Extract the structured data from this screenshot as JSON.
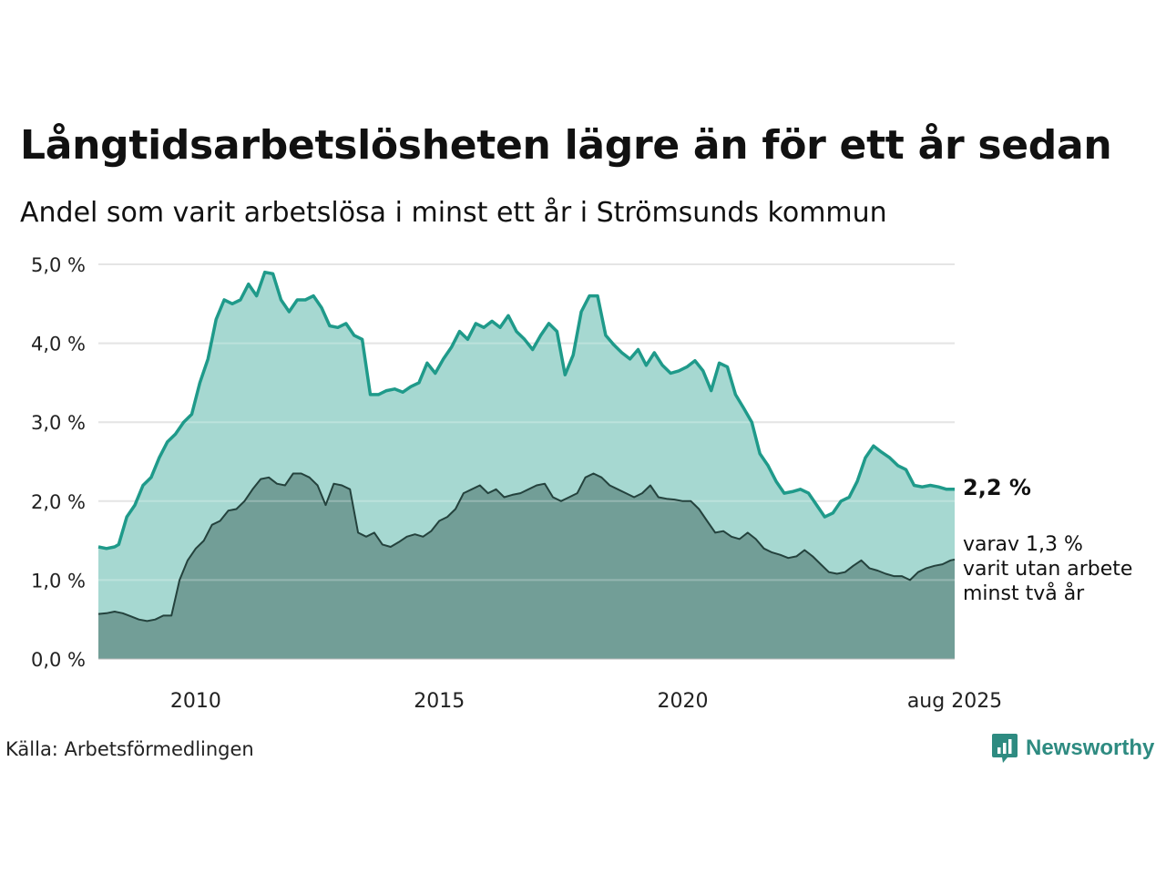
{
  "title": "Långtidsarbetslösheten lägre än för ett år sedan",
  "subtitle": "Andel som varit arbetslösa i minst ett år i Strömsunds kommun",
  "source": "Källa: Arbetsförmedlingen",
  "brand": "Newsworthy",
  "colors": {
    "series1_line": "#1f9a8a",
    "series1_fill": "#a6d8d1",
    "series2_line": "#24423d",
    "series2_fill": "#729e97",
    "grid": "#dddddd",
    "brand": "#2e8b81"
  },
  "chart_data": {
    "type": "area",
    "x_range": [
      "2008-01",
      "2025-08"
    ],
    "ylim": [
      0,
      5
    ],
    "y_ticks": [
      0,
      1,
      2,
      3,
      4,
      5
    ],
    "y_tick_labels": [
      "0,0 %",
      "1,0 %",
      "2,0 %",
      "3,0 %",
      "4,0 %",
      "5,0 %"
    ],
    "x_ticks": [
      "2010-01",
      "2015-01",
      "2020-01",
      "2025-08"
    ],
    "x_tick_labels": [
      "2010",
      "2015",
      "2020",
      "aug 2025"
    ],
    "grid": true,
    "series": [
      {
        "key": "min1",
        "points": [
          [
            "2008-01",
            1.42
          ],
          [
            "2008-03",
            1.4
          ],
          [
            "2008-05",
            1.42
          ],
          [
            "2008-06",
            1.45
          ],
          [
            "2008-08",
            1.8
          ],
          [
            "2008-10",
            1.95
          ],
          [
            "2008-12",
            2.2
          ],
          [
            "2009-02",
            2.3
          ],
          [
            "2009-04",
            2.55
          ],
          [
            "2009-06",
            2.75
          ],
          [
            "2009-08",
            2.85
          ],
          [
            "2009-10",
            3.0
          ],
          [
            "2009-12",
            3.1
          ],
          [
            "2010-02",
            3.5
          ],
          [
            "2010-04",
            3.8
          ],
          [
            "2010-06",
            4.3
          ],
          [
            "2010-08",
            4.55
          ],
          [
            "2010-10",
            4.5
          ],
          [
            "2010-12",
            4.55
          ],
          [
            "2011-02",
            4.75
          ],
          [
            "2011-04",
            4.6
          ],
          [
            "2011-06",
            4.9
          ],
          [
            "2011-08",
            4.88
          ],
          [
            "2011-10",
            4.55
          ],
          [
            "2011-12",
            4.4
          ],
          [
            "2012-02",
            4.55
          ],
          [
            "2012-04",
            4.55
          ],
          [
            "2012-06",
            4.6
          ],
          [
            "2012-08",
            4.45
          ],
          [
            "2012-10",
            4.22
          ],
          [
            "2012-12",
            4.2
          ],
          [
            "2013-02",
            4.25
          ],
          [
            "2013-04",
            4.1
          ],
          [
            "2013-06",
            4.05
          ],
          [
            "2013-08",
            3.35
          ],
          [
            "2013-10",
            3.35
          ],
          [
            "2013-12",
            3.4
          ],
          [
            "2014-02",
            3.42
          ],
          [
            "2014-04",
            3.38
          ],
          [
            "2014-06",
            3.45
          ],
          [
            "2014-08",
            3.5
          ],
          [
            "2014-10",
            3.75
          ],
          [
            "2014-12",
            3.62
          ],
          [
            "2015-02",
            3.8
          ],
          [
            "2015-04",
            3.95
          ],
          [
            "2015-06",
            4.15
          ],
          [
            "2015-08",
            4.05
          ],
          [
            "2015-10",
            4.25
          ],
          [
            "2015-12",
            4.2
          ],
          [
            "2016-02",
            4.28
          ],
          [
            "2016-04",
            4.2
          ],
          [
            "2016-06",
            4.35
          ],
          [
            "2016-08",
            4.15
          ],
          [
            "2016-10",
            4.05
          ],
          [
            "2016-12",
            3.92
          ],
          [
            "2017-02",
            4.1
          ],
          [
            "2017-04",
            4.25
          ],
          [
            "2017-06",
            4.15
          ],
          [
            "2017-08",
            3.6
          ],
          [
            "2017-10",
            3.85
          ],
          [
            "2017-12",
            4.4
          ],
          [
            "2018-02",
            4.6
          ],
          [
            "2018-04",
            4.6
          ],
          [
            "2018-06",
            4.1
          ],
          [
            "2018-08",
            3.98
          ],
          [
            "2018-10",
            3.88
          ],
          [
            "2018-12",
            3.8
          ],
          [
            "2019-02",
            3.92
          ],
          [
            "2019-04",
            3.72
          ],
          [
            "2019-06",
            3.88
          ],
          [
            "2019-08",
            3.72
          ],
          [
            "2019-10",
            3.62
          ],
          [
            "2019-12",
            3.65
          ],
          [
            "2020-02",
            3.7
          ],
          [
            "2020-04",
            3.78
          ],
          [
            "2020-06",
            3.65
          ],
          [
            "2020-08",
            3.4
          ],
          [
            "2020-10",
            3.75
          ],
          [
            "2020-12",
            3.7
          ],
          [
            "2021-02",
            3.35
          ],
          [
            "2021-04",
            3.18
          ],
          [
            "2021-06",
            3.0
          ],
          [
            "2021-08",
            2.6
          ],
          [
            "2021-10",
            2.45
          ],
          [
            "2021-12",
            2.25
          ],
          [
            "2022-02",
            2.1
          ],
          [
            "2022-04",
            2.12
          ],
          [
            "2022-06",
            2.15
          ],
          [
            "2022-08",
            2.1
          ],
          [
            "2022-10",
            1.95
          ],
          [
            "2022-12",
            1.8
          ],
          [
            "2023-02",
            1.85
          ],
          [
            "2023-04",
            2.0
          ],
          [
            "2023-06",
            2.05
          ],
          [
            "2023-08",
            2.25
          ],
          [
            "2023-10",
            2.55
          ],
          [
            "2023-12",
            2.7
          ],
          [
            "2024-02",
            2.62
          ],
          [
            "2024-04",
            2.55
          ],
          [
            "2024-06",
            2.45
          ],
          [
            "2024-08",
            2.4
          ],
          [
            "2024-10",
            2.2
          ],
          [
            "2024-12",
            2.18
          ],
          [
            "2025-02",
            2.2
          ],
          [
            "2025-04",
            2.18
          ],
          [
            "2025-06",
            2.15
          ],
          [
            "2025-08",
            2.15
          ]
        ],
        "end_label": "2,2 %"
      },
      {
        "key": "min2",
        "points": [
          [
            "2008-01",
            0.57
          ],
          [
            "2008-03",
            0.58
          ],
          [
            "2008-05",
            0.6
          ],
          [
            "2008-07",
            0.58
          ],
          [
            "2008-09",
            0.54
          ],
          [
            "2008-11",
            0.5
          ],
          [
            "2009-01",
            0.48
          ],
          [
            "2009-03",
            0.5
          ],
          [
            "2009-05",
            0.55
          ],
          [
            "2009-07",
            0.55
          ],
          [
            "2009-09",
            1.0
          ],
          [
            "2009-11",
            1.25
          ],
          [
            "2010-01",
            1.4
          ],
          [
            "2010-03",
            1.5
          ],
          [
            "2010-05",
            1.7
          ],
          [
            "2010-07",
            1.75
          ],
          [
            "2010-09",
            1.88
          ],
          [
            "2010-11",
            1.9
          ],
          [
            "2011-01",
            2.0
          ],
          [
            "2011-03",
            2.15
          ],
          [
            "2011-05",
            2.28
          ],
          [
            "2011-07",
            2.3
          ],
          [
            "2011-09",
            2.22
          ],
          [
            "2011-11",
            2.2
          ],
          [
            "2012-01",
            2.35
          ],
          [
            "2012-03",
            2.35
          ],
          [
            "2012-05",
            2.3
          ],
          [
            "2012-07",
            2.2
          ],
          [
            "2012-09",
            1.95
          ],
          [
            "2012-11",
            2.22
          ],
          [
            "2013-01",
            2.2
          ],
          [
            "2013-03",
            2.15
          ],
          [
            "2013-05",
            1.6
          ],
          [
            "2013-07",
            1.55
          ],
          [
            "2013-09",
            1.6
          ],
          [
            "2013-11",
            1.45
          ],
          [
            "2014-01",
            1.42
          ],
          [
            "2014-03",
            1.48
          ],
          [
            "2014-05",
            1.55
          ],
          [
            "2014-07",
            1.58
          ],
          [
            "2014-09",
            1.55
          ],
          [
            "2014-11",
            1.62
          ],
          [
            "2015-01",
            1.75
          ],
          [
            "2015-03",
            1.8
          ],
          [
            "2015-05",
            1.9
          ],
          [
            "2015-07",
            2.1
          ],
          [
            "2015-09",
            2.15
          ],
          [
            "2015-11",
            2.2
          ],
          [
            "2016-01",
            2.1
          ],
          [
            "2016-03",
            2.15
          ],
          [
            "2016-05",
            2.05
          ],
          [
            "2016-07",
            2.08
          ],
          [
            "2016-09",
            2.1
          ],
          [
            "2016-11",
            2.15
          ],
          [
            "2017-01",
            2.2
          ],
          [
            "2017-03",
            2.22
          ],
          [
            "2017-05",
            2.05
          ],
          [
            "2017-07",
            2.0
          ],
          [
            "2017-09",
            2.05
          ],
          [
            "2017-11",
            2.1
          ],
          [
            "2018-01",
            2.3
          ],
          [
            "2018-03",
            2.35
          ],
          [
            "2018-05",
            2.3
          ],
          [
            "2018-07",
            2.2
          ],
          [
            "2018-09",
            2.15
          ],
          [
            "2018-11",
            2.1
          ],
          [
            "2019-01",
            2.05
          ],
          [
            "2019-03",
            2.1
          ],
          [
            "2019-05",
            2.2
          ],
          [
            "2019-07",
            2.05
          ],
          [
            "2019-09",
            2.03
          ],
          [
            "2019-11",
            2.02
          ],
          [
            "2020-01",
            2.0
          ],
          [
            "2020-03",
            2.0
          ],
          [
            "2020-05",
            1.9
          ],
          [
            "2020-07",
            1.75
          ],
          [
            "2020-09",
            1.6
          ],
          [
            "2020-11",
            1.62
          ],
          [
            "2021-01",
            1.55
          ],
          [
            "2021-03",
            1.52
          ],
          [
            "2021-05",
            1.6
          ],
          [
            "2021-07",
            1.52
          ],
          [
            "2021-09",
            1.4
          ],
          [
            "2021-11",
            1.35
          ],
          [
            "2022-01",
            1.32
          ],
          [
            "2022-03",
            1.28
          ],
          [
            "2022-05",
            1.3
          ],
          [
            "2022-07",
            1.38
          ],
          [
            "2022-09",
            1.3
          ],
          [
            "2022-11",
            1.2
          ],
          [
            "2023-01",
            1.1
          ],
          [
            "2023-03",
            1.08
          ],
          [
            "2023-05",
            1.1
          ],
          [
            "2023-07",
            1.18
          ],
          [
            "2023-09",
            1.25
          ],
          [
            "2023-11",
            1.15
          ],
          [
            "2024-01",
            1.12
          ],
          [
            "2024-03",
            1.08
          ],
          [
            "2024-05",
            1.05
          ],
          [
            "2024-07",
            1.05
          ],
          [
            "2024-09",
            1.0
          ],
          [
            "2024-11",
            1.1
          ],
          [
            "2025-01",
            1.15
          ],
          [
            "2025-03",
            1.18
          ],
          [
            "2025-05",
            1.2
          ],
          [
            "2025-07",
            1.25
          ],
          [
            "2025-08",
            1.26
          ]
        ],
        "end_label_lines": [
          "varav 1,3 %",
          "varit utan arbete",
          "minst två år"
        ]
      }
    ]
  }
}
